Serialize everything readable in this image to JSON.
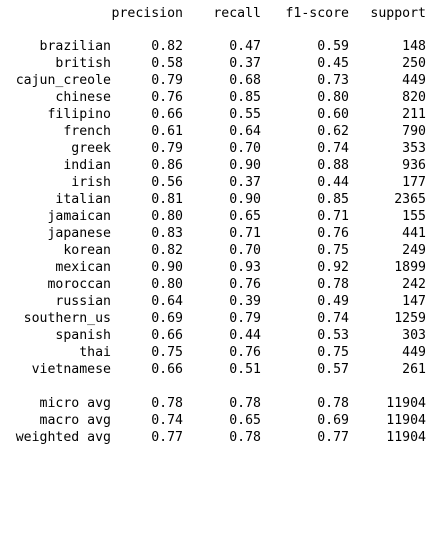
{
  "report": {
    "headers": {
      "precision": "precision",
      "recall": "recall",
      "f1": "f1-score",
      "support": "support"
    },
    "classes": [
      {
        "label": "brazilian",
        "precision": "0.82",
        "recall": "0.47",
        "f1": "0.59",
        "support": "148"
      },
      {
        "label": "british",
        "precision": "0.58",
        "recall": "0.37",
        "f1": "0.45",
        "support": "250"
      },
      {
        "label": "cajun_creole",
        "precision": "0.79",
        "recall": "0.68",
        "f1": "0.73",
        "support": "449"
      },
      {
        "label": "chinese",
        "precision": "0.76",
        "recall": "0.85",
        "f1": "0.80",
        "support": "820"
      },
      {
        "label": "filipino",
        "precision": "0.66",
        "recall": "0.55",
        "f1": "0.60",
        "support": "211"
      },
      {
        "label": "french",
        "precision": "0.61",
        "recall": "0.64",
        "f1": "0.62",
        "support": "790"
      },
      {
        "label": "greek",
        "precision": "0.79",
        "recall": "0.70",
        "f1": "0.74",
        "support": "353"
      },
      {
        "label": "indian",
        "precision": "0.86",
        "recall": "0.90",
        "f1": "0.88",
        "support": "936"
      },
      {
        "label": "irish",
        "precision": "0.56",
        "recall": "0.37",
        "f1": "0.44",
        "support": "177"
      },
      {
        "label": "italian",
        "precision": "0.81",
        "recall": "0.90",
        "f1": "0.85",
        "support": "2365"
      },
      {
        "label": "jamaican",
        "precision": "0.80",
        "recall": "0.65",
        "f1": "0.71",
        "support": "155"
      },
      {
        "label": "japanese",
        "precision": "0.83",
        "recall": "0.71",
        "f1": "0.76",
        "support": "441"
      },
      {
        "label": "korean",
        "precision": "0.82",
        "recall": "0.70",
        "f1": "0.75",
        "support": "249"
      },
      {
        "label": "mexican",
        "precision": "0.90",
        "recall": "0.93",
        "f1": "0.92",
        "support": "1899"
      },
      {
        "label": "moroccan",
        "precision": "0.80",
        "recall": "0.76",
        "f1": "0.78",
        "support": "242"
      },
      {
        "label": "russian",
        "precision": "0.64",
        "recall": "0.39",
        "f1": "0.49",
        "support": "147"
      },
      {
        "label": "southern_us",
        "precision": "0.69",
        "recall": "0.79",
        "f1": "0.74",
        "support": "1259"
      },
      {
        "label": "spanish",
        "precision": "0.66",
        "recall": "0.44",
        "f1": "0.53",
        "support": "303"
      },
      {
        "label": "thai",
        "precision": "0.75",
        "recall": "0.76",
        "f1": "0.75",
        "support": "449"
      },
      {
        "label": "vietnamese",
        "precision": "0.66",
        "recall": "0.51",
        "f1": "0.57",
        "support": "261"
      }
    ],
    "averages": [
      {
        "label": "micro avg",
        "precision": "0.78",
        "recall": "0.78",
        "f1": "0.78",
        "support": "11904"
      },
      {
        "label": "macro avg",
        "precision": "0.74",
        "recall": "0.65",
        "f1": "0.69",
        "support": "11904"
      },
      {
        "label": "weighted avg",
        "precision": "0.77",
        "recall": "0.78",
        "f1": "0.77",
        "support": "11904"
      }
    ]
  }
}
